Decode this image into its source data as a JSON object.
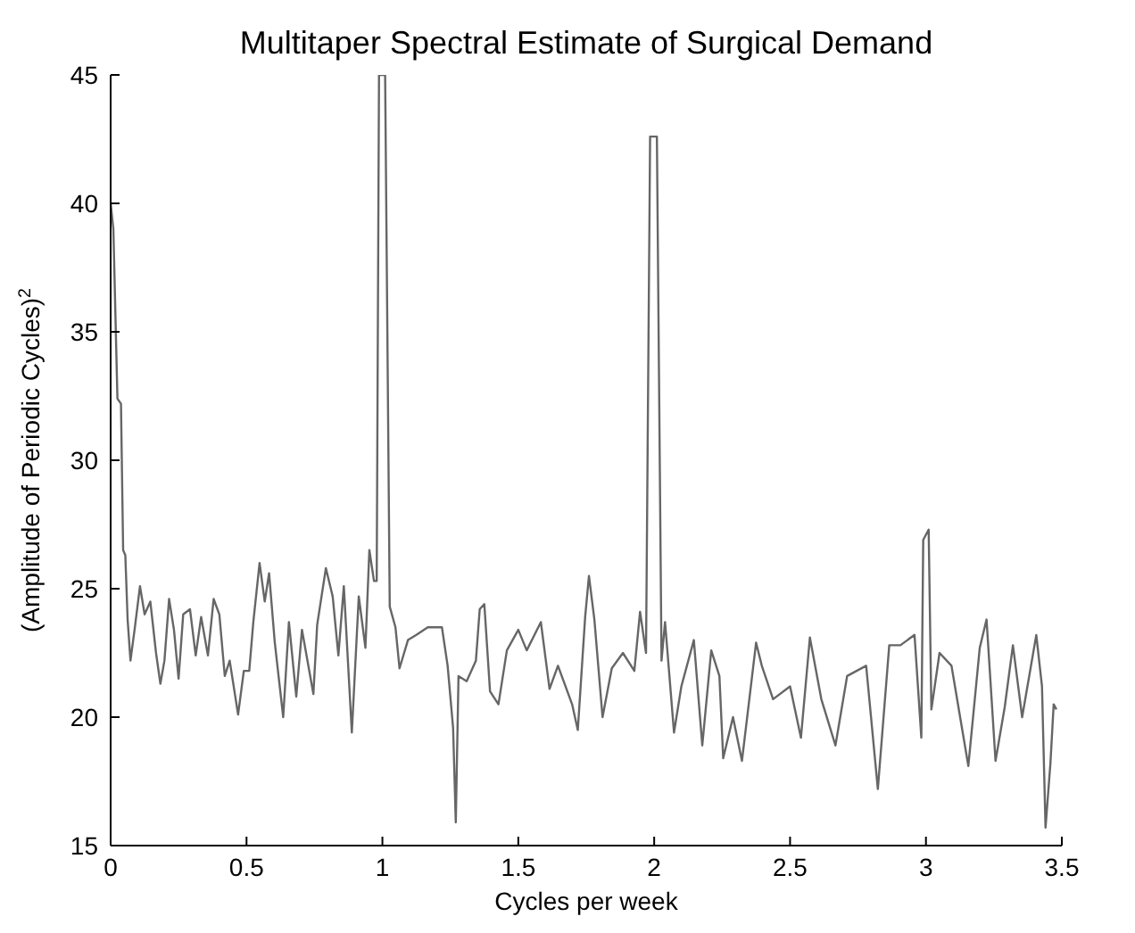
{
  "chart_data": {
    "type": "line",
    "title": "Multitaper Spectral Estimate of Surgical Demand",
    "xlabel": "Cycles per week",
    "ylabel": "(Amplitude of Periodic Cycles)$^{2}$",
    "x": [
      0,
      0.01,
      0.025,
      0.038,
      0.046,
      0.054,
      0.0625,
      0.073,
      0.088,
      0.108,
      0.125,
      0.146,
      0.167,
      0.183,
      0.198,
      0.215,
      0.233,
      0.25,
      0.267,
      0.292,
      0.313,
      0.333,
      0.358,
      0.379,
      0.4,
      0.42,
      0.438,
      0.469,
      0.49,
      0.51,
      0.525,
      0.548,
      0.567,
      0.583,
      0.604,
      0.635,
      0.656,
      0.683,
      0.704,
      0.746,
      0.76,
      0.792,
      0.817,
      0.838,
      0.858,
      0.8875,
      0.913,
      0.9375,
      0.952,
      0.969,
      0.979,
      0.9875,
      1.01,
      1.027,
      1.048,
      1.063,
      1.094,
      1.125,
      1.167,
      1.219,
      1.24,
      1.26,
      1.27,
      1.28,
      1.31,
      1.344,
      1.358,
      1.375,
      1.396,
      1.427,
      1.458,
      1.5,
      1.531,
      1.583,
      1.615,
      1.646,
      1.698,
      1.719,
      1.746,
      1.76,
      1.78,
      1.81,
      1.844,
      1.885,
      1.927,
      1.948,
      1.97,
      1.985,
      2.01,
      2.027,
      2.04,
      2.073,
      2.1,
      2.146,
      2.177,
      2.21,
      2.24,
      2.254,
      2.29,
      2.323,
      2.375,
      2.396,
      2.4375,
      2.5,
      2.54,
      2.573,
      2.615,
      2.667,
      2.71,
      2.78,
      2.823,
      2.865,
      2.906,
      2.958,
      2.983,
      2.99,
      3.01,
      3.02,
      3.05,
      3.094,
      3.156,
      3.198,
      3.223,
      3.256,
      3.29,
      3.32,
      3.354,
      3.406,
      3.427,
      3.44,
      3.458,
      3.47,
      3.48
    ],
    "series": [
      {
        "color": "#666666",
        "values": [
          40,
          39,
          32.4,
          32.2,
          26.5,
          26.3,
          23.8,
          22.2,
          23.4,
          25.1,
          24,
          24.5,
          22.5,
          21.3,
          22.2,
          24.6,
          23.4,
          21.5,
          24,
          24.2,
          22.4,
          23.9,
          22.4,
          24.6,
          24,
          21.6,
          22.2,
          20.1,
          21.8,
          21.8,
          23.7,
          26,
          24.5,
          25.6,
          22.9,
          20,
          23.7,
          20.8,
          23.4,
          20.9,
          23.6,
          25.8,
          24.7,
          22.4,
          25.1,
          19.4,
          24.7,
          22.7,
          26.5,
          25.3,
          25.3,
          45,
          45,
          24.3,
          23.5,
          21.9,
          23,
          23.2,
          23.5,
          23.5,
          22,
          19.6,
          15.9,
          21.6,
          21.4,
          22.2,
          24.2,
          24.4,
          21,
          20.5,
          22.6,
          23.4,
          22.6,
          23.7,
          21.1,
          22,
          20.5,
          19.5,
          23.9,
          25.5,
          23.8,
          20,
          21.9,
          22.5,
          21.8,
          24.1,
          22.5,
          42.6,
          42.6,
          22.2,
          23.7,
          19.4,
          21.2,
          23,
          18.9,
          22.6,
          21.6,
          18.4,
          20,
          18.3,
          22.9,
          22,
          20.7,
          21.2,
          19.2,
          23.1,
          20.7,
          18.9,
          21.6,
          22,
          17.2,
          22.8,
          22.8,
          23.2,
          19.2,
          26.9,
          27.3,
          20.3,
          22.5,
          22,
          18.1,
          22.7,
          23.8,
          18.3,
          20.4,
          22.8,
          20,
          23.2,
          21.2,
          15.7,
          18.2,
          20.5,
          20.3
        ]
      }
    ],
    "xlim": [
      0,
      3.5
    ],
    "xticks": [
      0,
      0.5,
      1,
      1.5,
      2,
      2.5,
      3,
      3.5
    ],
    "ylim": [
      15,
      45
    ],
    "yticks": [
      15,
      20,
      25,
      30,
      35,
      40,
      45
    ],
    "grid": false,
    "marker": "none",
    "line_style": "solid"
  }
}
